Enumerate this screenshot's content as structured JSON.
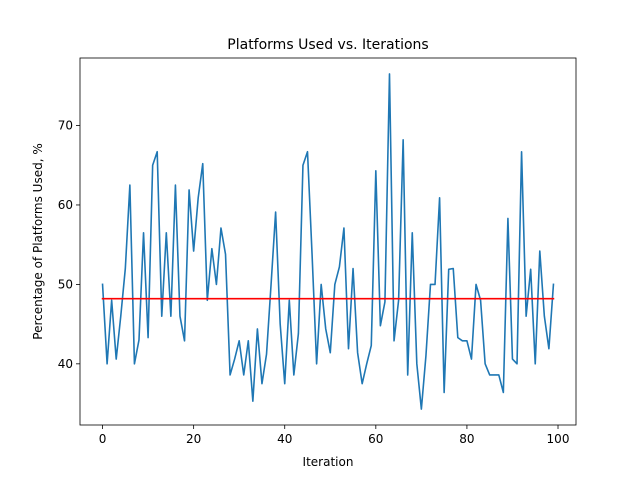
{
  "chart_data": {
    "type": "line",
    "title": "Platforms Used vs. Iterations",
    "xlabel": "Iteration",
    "ylabel": "Percentage of Platforms Used, %",
    "xlim": [
      -4.95,
      103.95
    ],
    "ylim": [
      32.3,
      78.5
    ],
    "xticks": [
      0,
      20,
      40,
      60,
      80,
      100
    ],
    "yticks": [
      40,
      50,
      60,
      70
    ],
    "grid": false,
    "legend": "none",
    "series": [
      {
        "color": "#1f77b4",
        "x": [
          0,
          1,
          2,
          3,
          4,
          5,
          6,
          7,
          8,
          9,
          10,
          11,
          12,
          13,
          14,
          15,
          16,
          17,
          18,
          19,
          20,
          21,
          22,
          23,
          24,
          25,
          26,
          27,
          28,
          29,
          30,
          31,
          32,
          33,
          34,
          35,
          36,
          37,
          38,
          39,
          40,
          41,
          42,
          43,
          44,
          45,
          46,
          47,
          48,
          49,
          50,
          51,
          52,
          53,
          54,
          55,
          56,
          57,
          58,
          59,
          60,
          61,
          62,
          63,
          64,
          65,
          66,
          67,
          68,
          69,
          70,
          71,
          72,
          73,
          74,
          75,
          76,
          77,
          78,
          79,
          80,
          81,
          82,
          83,
          84,
          85,
          86,
          87,
          88,
          89,
          90,
          91,
          92,
          93,
          94,
          95,
          96,
          97,
          98,
          99
        ],
        "y": [
          50.0,
          40.0,
          48.0,
          40.6,
          46.0,
          52.0,
          62.5,
          40.0,
          43.0,
          56.5,
          43.3,
          65.0,
          66.7,
          46.0,
          56.5,
          46.0,
          62.5,
          46.0,
          42.9,
          61.9,
          54.2,
          60.9,
          65.2,
          48.0,
          54.5,
          50.0,
          57.1,
          53.8,
          38.6,
          40.6,
          42.9,
          38.6,
          42.9,
          35.3,
          44.4,
          37.5,
          41.2,
          50.0,
          59.1,
          45.0,
          37.5,
          48.0,
          38.6,
          43.8,
          65.0,
          66.7,
          53.8,
          40.0,
          50.0,
          44.4,
          41.4,
          50.0,
          52.2,
          57.1,
          41.9,
          52.0,
          41.4,
          37.5,
          40.0,
          42.3,
          64.3,
          44.8,
          47.8,
          76.5,
          42.9,
          48.0,
          68.2,
          38.6,
          56.5,
          40.0,
          34.3,
          41.0,
          50.0,
          50.0,
          60.9,
          36.4,
          51.9,
          52.0,
          43.3,
          42.9,
          42.9,
          40.6,
          50.0,
          48.0,
          40.0,
          38.6,
          38.6,
          38.6,
          36.4,
          58.3,
          40.6,
          40.0,
          66.7,
          46.0,
          51.9,
          40.0,
          54.2,
          46.0,
          41.9,
          50.0
        ]
      },
      {
        "color": "#ff0000",
        "x": [
          0,
          99
        ],
        "y": [
          48.2,
          48.2
        ]
      }
    ]
  }
}
